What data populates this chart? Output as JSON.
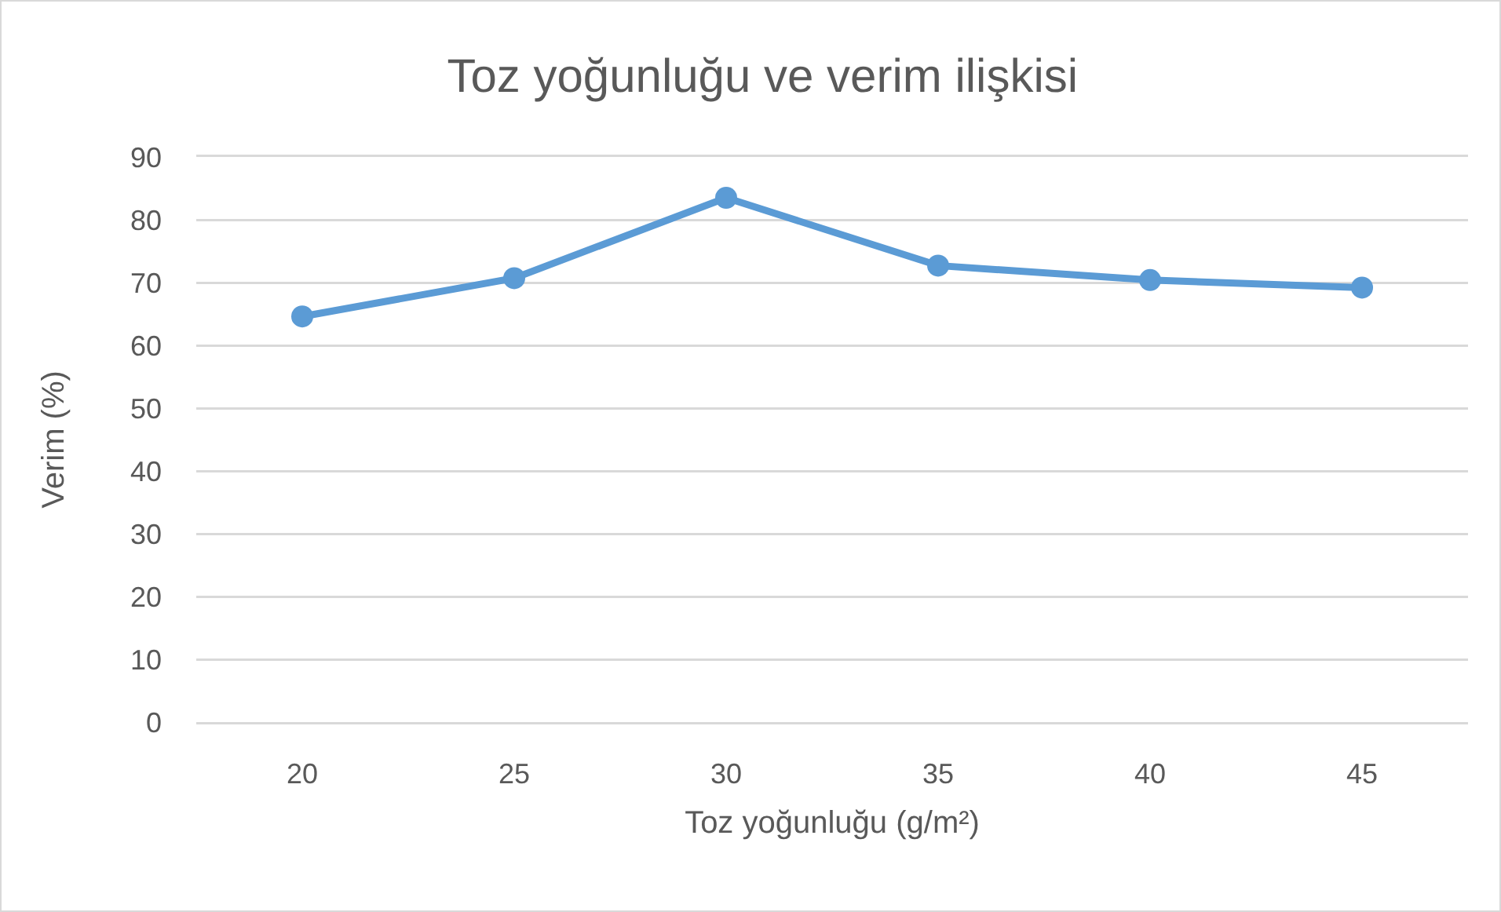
{
  "chart_data": {
    "type": "line",
    "title": "Toz yoğunluğu ve verim ilişkisi",
    "xlabel": "Toz yoğunluğu (g/m²)",
    "ylabel": "Verim (%)",
    "categories": [
      "20",
      "25",
      "30",
      "35",
      "40",
      "45"
    ],
    "series": [
      {
        "color": "#5b9bd5",
        "values": [
          64.6,
          70.7,
          83.5,
          72.7,
          70.4,
          69.2
        ]
      }
    ],
    "ylim": [
      0,
      90
    ],
    "yticks": [
      0,
      10,
      20,
      30,
      40,
      50,
      60,
      70,
      80,
      90
    ],
    "grid": "y",
    "marker": "circle",
    "line_style": "solid"
  }
}
